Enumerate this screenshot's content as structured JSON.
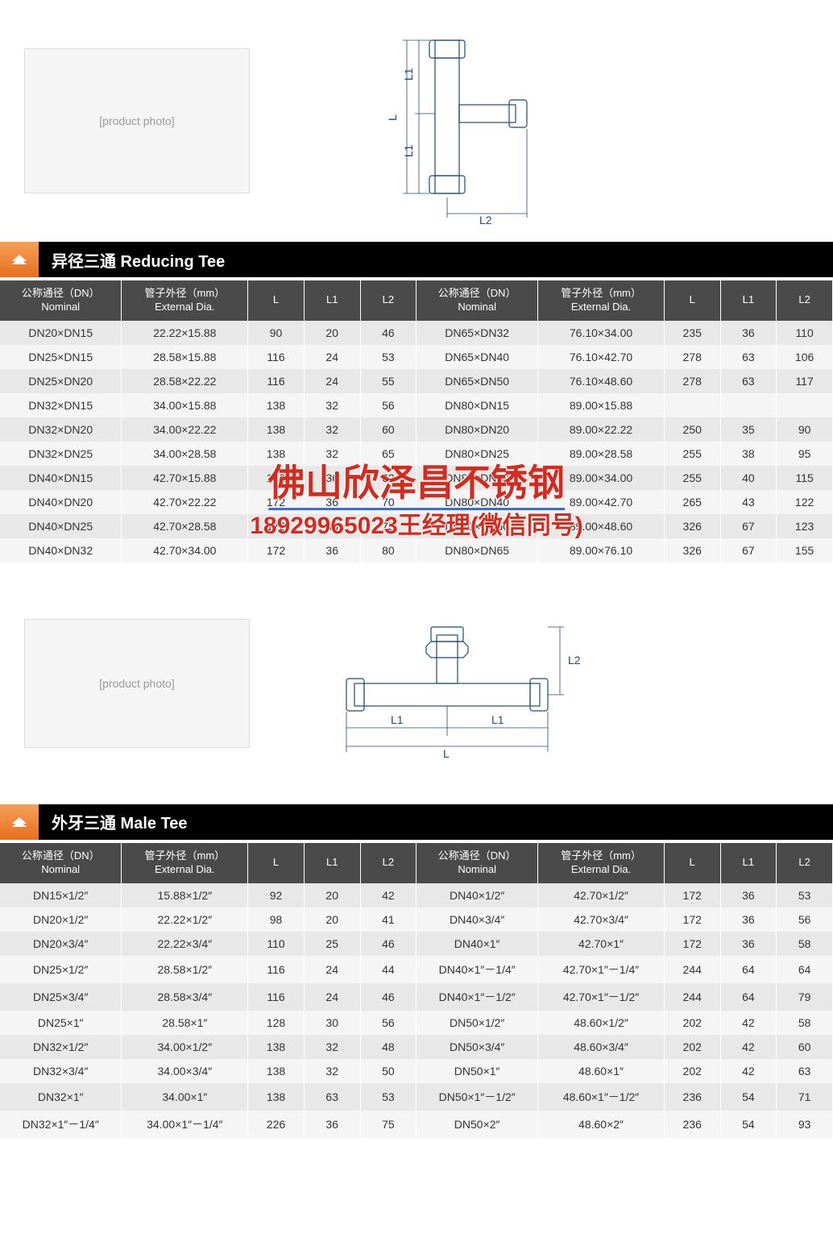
{
  "watermark": {
    "line1": "佛山欣泽昌不锈钢",
    "line2": "18929965023王经理(微信同号)"
  },
  "sections": [
    {
      "title": "异径三通 Reducing Tee",
      "drawing_labels": {
        "L": "L",
        "L1": "L1",
        "L2": "L2"
      },
      "columns": [
        {
          "cn": "公称通径（DN）",
          "en": "Nominal"
        },
        {
          "cn": "管子外径（mm）",
          "en": "External Dia."
        },
        {
          "cn": "L",
          "en": ""
        },
        {
          "cn": "L1",
          "en": ""
        },
        {
          "cn": "L2",
          "en": ""
        },
        {
          "cn": "公称通径（DN）",
          "en": "Nominal"
        },
        {
          "cn": "管子外径（mm）",
          "en": "External Dia."
        },
        {
          "cn": "L",
          "en": ""
        },
        {
          "cn": "L1",
          "en": ""
        },
        {
          "cn": "L2",
          "en": ""
        }
      ],
      "rows": [
        [
          "DN20×DN15",
          "22.22×15.88",
          "90",
          "20",
          "46",
          "DN65×DN32",
          "76.10×34.00",
          "235",
          "36",
          "110"
        ],
        [
          "DN25×DN15",
          "28.58×15.88",
          "116",
          "24",
          "53",
          "DN65×DN40",
          "76.10×42.70",
          "278",
          "63",
          "106"
        ],
        [
          "DN25×DN20",
          "28.58×22.22",
          "116",
          "24",
          "55",
          "DN65×DN50",
          "76.10×48.60",
          "278",
          "63",
          "117"
        ],
        [
          "DN32×DN15",
          "34.00×15.88",
          "138",
          "32",
          "56",
          "DN80×DN15",
          "89.00×15.88",
          "",
          "",
          ""
        ],
        [
          "DN32×DN20",
          "34.00×22.22",
          "138",
          "32",
          "60",
          "DN80×DN20",
          "89.00×22.22",
          "250",
          "35",
          "90"
        ],
        [
          "DN32×DN25",
          "34.00×28.58",
          "138",
          "32",
          "65",
          "DN80×DN25",
          "89.00×28.58",
          "255",
          "38",
          "95"
        ],
        [
          "DN40×DN15",
          "42.70×15.88",
          "172",
          "36",
          "62",
          "DN80×DN32",
          "89.00×34.00",
          "255",
          "40",
          "115"
        ],
        [
          "DN40×DN20",
          "42.70×22.22",
          "172",
          "36",
          "70",
          "DN80×DN40",
          "89.00×42.70",
          "265",
          "43",
          "122"
        ],
        [
          "DN40×DN25",
          "42.70×28.58",
          "172",
          "36",
          "75",
          "DN80×DN50",
          "89.00×48.60",
          "326",
          "67",
          "123"
        ],
        [
          "DN40×DN32",
          "42.70×34.00",
          "172",
          "36",
          "80",
          "DN80×DN65",
          "89.00×76.10",
          "326",
          "67",
          "155"
        ]
      ]
    },
    {
      "title": "外牙三通 Male Tee",
      "drawing_labels": {
        "L": "L",
        "L1": "L1",
        "L2": "L2"
      },
      "columns": [
        {
          "cn": "公称通径（DN）",
          "en": "Nominal"
        },
        {
          "cn": "管子外径（mm）",
          "en": "External Dia."
        },
        {
          "cn": "L",
          "en": ""
        },
        {
          "cn": "L1",
          "en": ""
        },
        {
          "cn": "L2",
          "en": ""
        },
        {
          "cn": "公称通径（DN）",
          "en": "Nominal"
        },
        {
          "cn": "管子外径（mm）",
          "en": "External Dia."
        },
        {
          "cn": "L",
          "en": ""
        },
        {
          "cn": "L1",
          "en": ""
        },
        {
          "cn": "L2",
          "en": ""
        }
      ],
      "rows": [
        [
          "DN15×1/2″",
          "15.88×1/2″",
          "92",
          "20",
          "42",
          "DN40×1/2″",
          "42.70×1/2″",
          "172",
          "36",
          "53"
        ],
        [
          "DN20×1/2″",
          "22.22×1/2″",
          "98",
          "20",
          "41",
          "DN40×3/4″",
          "42.70×3/4″",
          "172",
          "36",
          "56"
        ],
        [
          "DN20×3/4″",
          "22.22×3/4″",
          "110",
          "25",
          "46",
          "DN40×1″",
          "42.70×1″",
          "172",
          "36",
          "58"
        ],
        [
          "DN25×1/2″",
          "28.58×1/2″",
          "116",
          "24",
          "44",
          "DN40×1″－1/4″",
          "42.70×1″－1/4″",
          "244",
          "64",
          "64"
        ],
        [
          "DN25×3/4″",
          "28.58×3/4″",
          "116",
          "24",
          "46",
          "DN40×1″－1/2″",
          "42.70×1″－1/2″",
          "244",
          "64",
          "79"
        ],
        [
          "DN25×1″",
          "28.58×1″",
          "128",
          "30",
          "56",
          "DN50×1/2″",
          "48.60×1/2″",
          "202",
          "42",
          "58"
        ],
        [
          "DN32×1/2″",
          "34.00×1/2″",
          "138",
          "32",
          "48",
          "DN50×3/4″",
          "48.60×3/4″",
          "202",
          "42",
          "60"
        ],
        [
          "DN32×3/4″",
          "34.00×3/4″",
          "138",
          "32",
          "50",
          "DN50×1″",
          "48.60×1″",
          "202",
          "42",
          "63"
        ],
        [
          "DN32×1″",
          "34.00×1″",
          "138",
          "63",
          "53",
          "DN50×1″－1/2″",
          "48.60×1″－1/2″",
          "236",
          "54",
          "71"
        ],
        [
          "DN32×1″－1/4″",
          "34.00×1″－1/4″",
          "226",
          "36",
          "75",
          "DN50×2″",
          "48.60×2″",
          "236",
          "54",
          "93"
        ]
      ]
    }
  ],
  "styling": {
    "header_bg": "#000000",
    "header_fg": "#ffffff",
    "chevron_gradient": [
      "#f5a05a",
      "#e6701e"
    ],
    "th_bg": "#4a4a4a",
    "th_fg": "#ffffff",
    "row_odd_bg": "#e8e8e8",
    "row_even_bg": "#f5f5f5",
    "drawing_stroke": "#1a4a7a",
    "watermark_color": "#d52b1e",
    "watermark_underline": "#3a6cc7",
    "title_fontsize": 20,
    "th_fontsize": 13,
    "td_fontsize": 14,
    "watermark_fontsize": 46,
    "watermark_sub_fontsize": 30
  }
}
